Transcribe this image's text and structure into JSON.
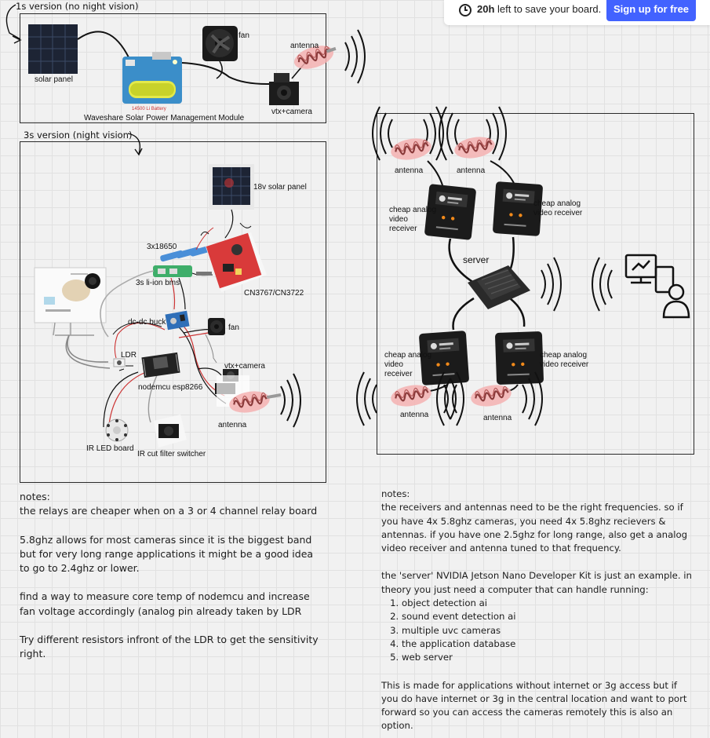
{
  "topbar": {
    "timer_bold": "20h",
    "timer_text": " left to save your board.",
    "signup_label": "Sign up for free"
  },
  "sections": {
    "v1_title": "1s version (no night vision)",
    "v3_title": "3s version (night vision)"
  },
  "v1": {
    "solar_panel": "solar panel",
    "fan": "fan",
    "antenna": "antenna",
    "battery": "14500 Li Battery",
    "module": "Waveshare Solar Power Management Module",
    "vtx": "vtx+camera"
  },
  "v3": {
    "solar_panel": "18v solar panel",
    "battery_pack": "3x18650",
    "bms": "3s li-ion bms",
    "charger": "CN3767/CN3722",
    "buck": "dc-dc buck",
    "fan": "fan",
    "ldr": "LDR",
    "vtx": "vtx+camera",
    "mcu": "nodemcu esp8266",
    "antenna": "antenna",
    "ir_board": "IR LED board",
    "ir_switcher": "IR cut filter switcher"
  },
  "server_diagram": {
    "antenna_top_left": "antenna",
    "antenna_top_right": "antenna",
    "receiver_top_left": "cheap analog video receiver",
    "receiver_top_right": "cheap analog video receiver",
    "server": "server",
    "receiver_bottom_left": "cheap analog video receiver",
    "receiver_bottom_right": "cheap analog video receiver",
    "antenna_bottom_left": "antenna",
    "antenna_bottom_right": "antenna"
  },
  "notes_left": {
    "heading": "notes:",
    "p1": "the relays are cheaper when on a 3 or 4 channel relay board",
    "p2": "5.8ghz allows for most cameras since it is the biggest band but for very long range applications it might be a good idea to go to 2.4ghz or lower.",
    "p3": "find a way to measure core temp of nodemcu and increase fan voltage accordingly (analog pin already taken by LDR",
    "p4": "Try different resistors infront of the LDR to get the sensitivity right."
  },
  "notes_right": {
    "heading": "notes:",
    "p1": "the receivers and antennas need to be the right frequencies. so if you have 4x 5.8ghz cameras, you need 4x 5.8ghz recievers & antennas. if you have one 2.5ghz for long range, also get a analog video receiver and antenna tuned to that frequency.",
    "p2": "the 'server' NVIDIA Jetson Nano Developer Kit is just an example. in theory you just need a computer that can handle running:",
    "list": [
      "object detection ai",
      "sound event detection ai",
      "multiple uvc cameras",
      "the application database",
      "web server"
    ],
    "p3": "This is made for applications without internet or 3g access but if you do have internet or 3g in the central location and want to port forward so you can access the cameras remotely this is also an option."
  },
  "colors": {
    "signup": "#4262ff",
    "antenna_pink": "#f2a8a8",
    "pcb_blue": "#3b8ec9",
    "pcb_red": "#d93a3a",
    "pcb_green": "#3fae6a"
  }
}
